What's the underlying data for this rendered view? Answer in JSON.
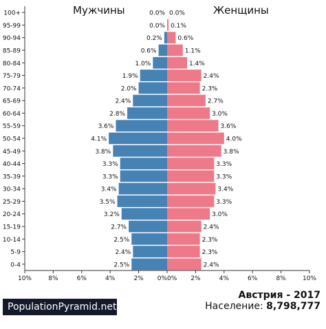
{
  "header": {
    "men": "Мужчины",
    "women": "Женщины"
  },
  "footer": {
    "brand": "PopulationPyramid.net",
    "country_year": "Австрия - 2017",
    "population_label": "Население:",
    "population_value": "8,798,777"
  },
  "colors": {
    "male": "#4682b4",
    "female": "#ee7989",
    "axis": "#333333"
  },
  "chart_data": {
    "type": "bar",
    "orientation": "horizontal-diverging",
    "categories": [
      "100+",
      "95-99",
      "90-94",
      "85-89",
      "80-84",
      "75-79",
      "70-74",
      "65-69",
      "60-64",
      "55-59",
      "50-54",
      "45-49",
      "40-44",
      "35-39",
      "30-34",
      "25-29",
      "20-24",
      "15-19",
      "10-14",
      "5-9",
      "0-4"
    ],
    "series": [
      {
        "name": "Мужчины",
        "values": [
          0.0,
          0.0,
          0.2,
          0.6,
          1.0,
          1.9,
          2.0,
          2.4,
          2.8,
          3.6,
          4.1,
          3.8,
          3.3,
          3.3,
          3.4,
          3.5,
          3.2,
          2.7,
          2.5,
          2.4,
          2.5
        ]
      },
      {
        "name": "Женщины",
        "values": [
          0.0,
          0.1,
          0.6,
          1.1,
          1.4,
          2.4,
          2.3,
          2.7,
          3.0,
          3.6,
          4.0,
          3.8,
          3.3,
          3.3,
          3.4,
          3.3,
          3.0,
          2.4,
          2.3,
          2.3,
          2.4
        ]
      }
    ],
    "value_labels": {
      "male": [
        "0.0%",
        "0.0%",
        "0.2%",
        "0.6%",
        "1.0%",
        "1.9%",
        "2.0%",
        "2.4%",
        "2.8%",
        "3.6%",
        "4.1%",
        "3.8%",
        "3.3%",
        "3.3%",
        "3.4%",
        "3.5%",
        "3.2%",
        "2.7%",
        "2.5%",
        "2.4%",
        "2.5%"
      ],
      "female": [
        "0.0%",
        "0.1%",
        "0.6%",
        "1.1%",
        "1.4%",
        "2.4%",
        "2.3%",
        "2.7%",
        "3.0%",
        "3.6%",
        "4.0%",
        "3.8%",
        "3.3%",
        "3.3%",
        "3.4%",
        "3.3%",
        "3.0%",
        "2.4%",
        "2.3%",
        "2.3%",
        "2.4%"
      ]
    },
    "xlim": [
      0,
      10
    ],
    "xticks_left": [
      "10%",
      "8%",
      "6%",
      "4%",
      "2%",
      "0%"
    ],
    "xticks_right": [
      "0%",
      "2%",
      "4%",
      "6%",
      "8%",
      "10%"
    ],
    "grid": false
  }
}
